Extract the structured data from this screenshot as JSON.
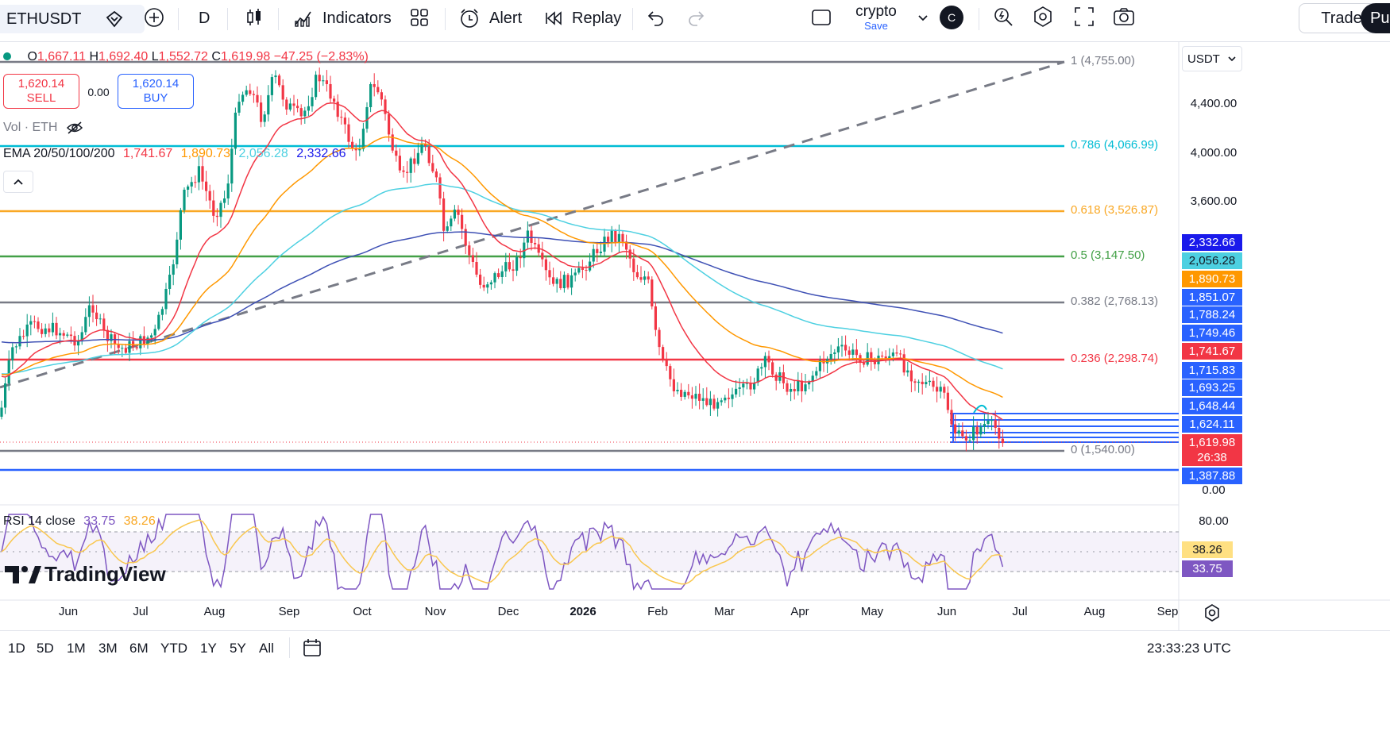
{
  "toolbar": {
    "symbol": "ETHUSDT",
    "interval": "D",
    "indicators_label": "Indicators",
    "alert_label": "Alert",
    "replay_label": "Replay",
    "layout_name": "crypto",
    "layout_save": "Save",
    "avatar_letter": "C",
    "trade_label": "Trade",
    "publish_label": "Pu"
  },
  "legend": {
    "ohlc_open_label": "O",
    "ohlc_open": "1,667.11",
    "ohlc_high_label": "H",
    "ohlc_high": "1,692.40",
    "ohlc_low_label": "L",
    "ohlc_low": "1,552.72",
    "ohlc_close_label": "C",
    "ohlc_close": "1,619.98",
    "change": "−47.25 (−2.83%)",
    "sell_price": "1,620.14",
    "sell_label": "SELL",
    "spread": "0.00",
    "buy_price": "1,620.14",
    "buy_label": "BUY",
    "vol_label": "Vol · ETH",
    "ema_label": "EMA 20/50/100/200",
    "ema20": "1,741.67",
    "ema50": "1,890.73",
    "ema100": "2,056.28",
    "ema200": "2,332.66",
    "rsi_label": "RSI 14 close",
    "rsi_value": "33.75",
    "rsi_ma": "38.26"
  },
  "price_scale": {
    "currency": "USDT",
    "ticks": [
      "4,400.00",
      "4,000.00",
      "3,600.00",
      "0.00"
    ],
    "rsi_ticks": [
      "80.00"
    ],
    "labels": [
      {
        "text": "2,332.66",
        "color": "#1a1aeb"
      },
      {
        "text": "2,056.28",
        "color": "#4dd0e1"
      },
      {
        "text": "1,890.73",
        "color": "#ff9800"
      },
      {
        "text": "1,851.07",
        "color": "#2962ff"
      },
      {
        "text": "1,788.24",
        "color": "#2962ff"
      },
      {
        "text": "1,749.46",
        "color": "#2962ff"
      },
      {
        "text": "1,741.67",
        "color": "#f23645"
      },
      {
        "text": "1,715.83",
        "color": "#2962ff"
      },
      {
        "text": "1,693.25",
        "color": "#2962ff"
      },
      {
        "text": "1,648.44",
        "color": "#2962ff"
      },
      {
        "text": "1,624.11",
        "color": "#2962ff"
      },
      {
        "text": "1,619.98",
        "color": "#f23645"
      },
      {
        "text": "26:38",
        "color": "#f23645"
      },
      {
        "text": "1,387.88",
        "color": "#2962ff"
      }
    ],
    "rsi_labels": [
      {
        "text": "38.26",
        "color": "#ffe082"
      },
      {
        "text": "33.75",
        "color": "#7e57c2"
      }
    ]
  },
  "fib_levels": [
    {
      "ratio": "1",
      "price": "(4,755.00)",
      "color": "#787b86"
    },
    {
      "ratio": "0.786",
      "price": "(4,066.99)",
      "color": "#00bcd4"
    },
    {
      "ratio": "0.618",
      "price": "(3,526.87)",
      "color": "#f9a825"
    },
    {
      "ratio": "0.5",
      "price": "(3,147.50)",
      "color": "#43a047"
    },
    {
      "ratio": "0.382",
      "price": "(2,768.13)",
      "color": "#787b86"
    },
    {
      "ratio": "0.236",
      "price": "(2,298.74)",
      "color": "#f23645"
    },
    {
      "ratio": "0",
      "price": "(1,540.00)",
      "color": "#787b86"
    }
  ],
  "time_axis": [
    "Jun",
    "Jul",
    "Aug",
    "Sep",
    "Oct",
    "Nov",
    "Dec",
    "2026",
    "Feb",
    "Mar",
    "Apr",
    "May",
    "Jun",
    "Jul",
    "Aug",
    "Sep"
  ],
  "bottom_bar": {
    "ranges": [
      "1D",
      "5D",
      "1M",
      "3M",
      "6M",
      "YTD",
      "1Y",
      "5Y",
      "All"
    ],
    "clock": "23:33:23 UTC"
  },
  "watermark": "TradingView",
  "colors": {
    "up": "#089981",
    "down": "#f23645",
    "ema20": "#f23645",
    "ema50": "#ff9800",
    "ema100": "#4dd0e1",
    "ema200": "#3f51b5",
    "rsi": "#7e57c2",
    "rsi_ma": "#f9c74f"
  }
}
